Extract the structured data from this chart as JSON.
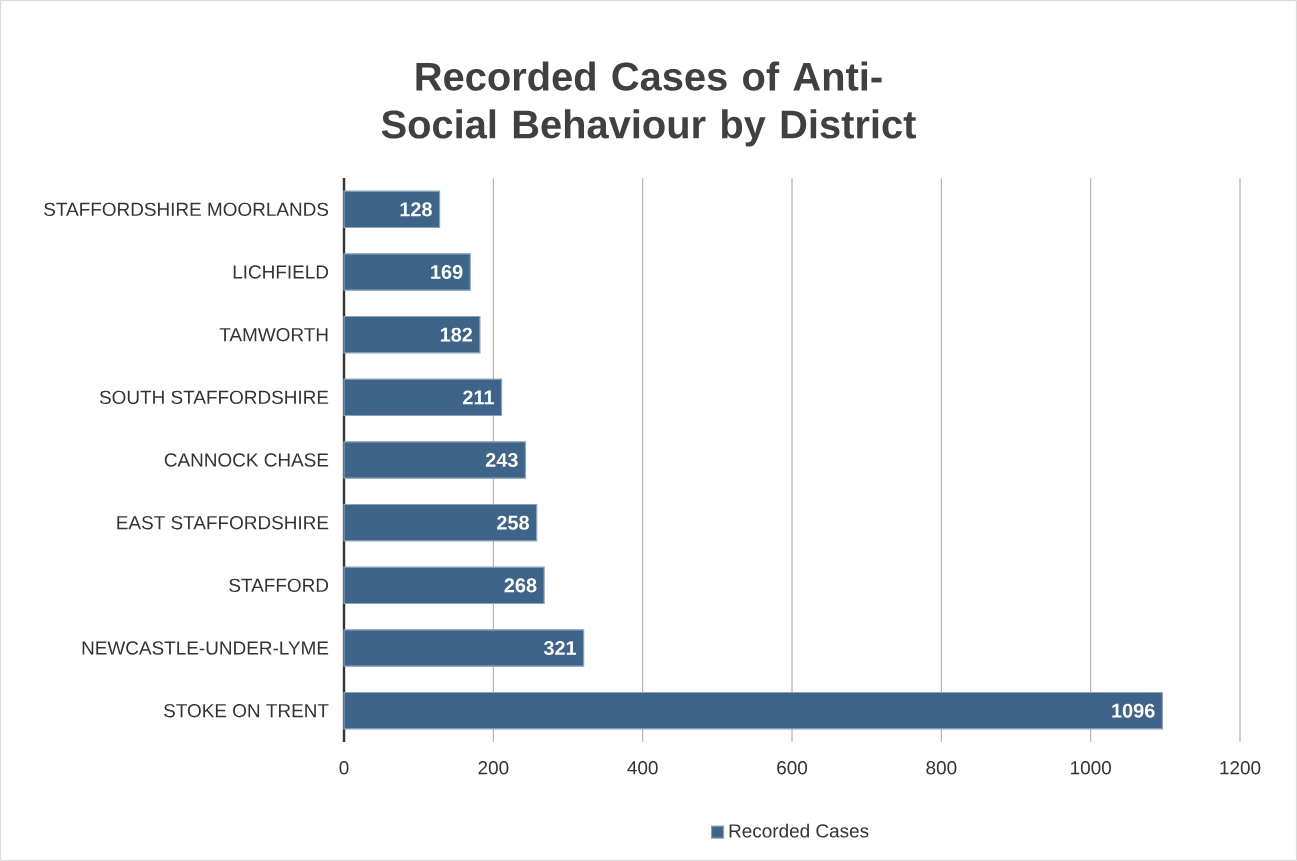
{
  "chart_data": {
    "type": "bar",
    "orientation": "horizontal",
    "title": "Recorded Cases of Anti-Social Behaviour by District",
    "categories": [
      "STAFFORDSHIRE MOORLANDS",
      "LICHFIELD",
      "TAMWORTH",
      "SOUTH STAFFORDSHIRE",
      "CANNOCK CHASE",
      "EAST STAFFORDSHIRE",
      "STAFFORD",
      "NEWCASTLE-UNDER-LYME",
      "STOKE ON TRENT"
    ],
    "series": [
      {
        "name": "Recorded Cases",
        "color": "#3f6489",
        "values": [
          128,
          169,
          182,
          211,
          243,
          258,
          268,
          321,
          1096
        ]
      }
    ],
    "xlim": [
      0,
      1200
    ],
    "xticks": [
      0,
      200,
      400,
      600,
      800,
      1000,
      1200
    ],
    "grid": "x",
    "legend": "bottom",
    "data_labels": true
  }
}
